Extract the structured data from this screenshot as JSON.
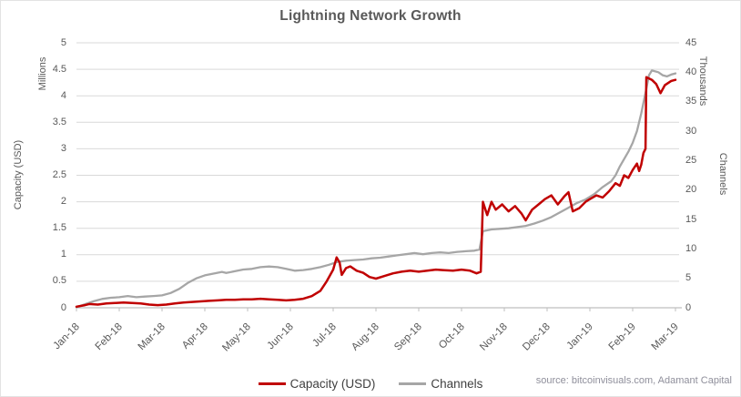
{
  "title": "Lightning Network Growth",
  "source": "source: bitcoinvisuals.com, Adamant Capital",
  "colors": {
    "capacity_line": "#c00000",
    "channels_line": "#a6a6a6",
    "grid": "#d9d9d9",
    "axis": "#bfbfbf",
    "tick_text": "#595959",
    "legend_text": "#3f3f3f",
    "source_text": "#8f8f9b"
  },
  "left_axis": {
    "unit": "Millions",
    "title": "Capacity (USD)"
  },
  "right_axis": {
    "unit": "Thousands",
    "title": "Channels"
  },
  "legend": [
    {
      "label": "Capacity (USD)",
      "color": "#c00000"
    },
    {
      "label": "Channels",
      "color": "#a6a6a6"
    }
  ],
  "chart_data": {
    "type": "line",
    "title": "Lightning Network Growth",
    "grid": true,
    "legend_position": "bottom",
    "x_tick_labels": [
      "Jan-18",
      "Feb-18",
      "Mar-18",
      "Apr-18",
      "May-18",
      "Jun-18",
      "Jul-18",
      "Aug-18",
      "Sep-18",
      "Oct-18",
      "Nov-18",
      "Dec-18",
      "Jan-19",
      "Feb-19",
      "Mar-19"
    ],
    "x_unit": "months after Jan-18 tick (0 = Jan-18, 14 = Mar-19)",
    "left_axis": {
      "label": "Capacity (USD)",
      "unit": "Millions",
      "ticks": [
        "5",
        "4.5",
        "4",
        "3.5",
        "3",
        "2.5",
        "2",
        "1.5",
        "1",
        "0.5",
        "0"
      ],
      "ylim": [
        0,
        5
      ]
    },
    "right_axis": {
      "label": "Channels",
      "unit": "Thousands",
      "ticks": [
        "45",
        "40",
        "35",
        "30",
        "25",
        "20",
        "15",
        "10",
        "5",
        "0"
      ],
      "ylim": [
        0,
        45
      ]
    },
    "series": [
      {
        "name": "Capacity (USD)",
        "axis": "left",
        "units": "millions USD",
        "color": "#c00000",
        "points": [
          [
            0.0,
            0.02
          ],
          [
            0.2,
            0.05
          ],
          [
            0.3,
            0.07
          ],
          [
            0.5,
            0.06
          ],
          [
            0.7,
            0.08
          ],
          [
            0.9,
            0.09
          ],
          [
            1.1,
            0.1
          ],
          [
            1.3,
            0.09
          ],
          [
            1.5,
            0.08
          ],
          [
            1.7,
            0.06
          ],
          [
            1.9,
            0.05
          ],
          [
            2.1,
            0.06
          ],
          [
            2.3,
            0.08
          ],
          [
            2.5,
            0.1
          ],
          [
            2.7,
            0.11
          ],
          [
            2.9,
            0.12
          ],
          [
            3.1,
            0.13
          ],
          [
            3.3,
            0.14
          ],
          [
            3.5,
            0.15
          ],
          [
            3.7,
            0.15
          ],
          [
            3.9,
            0.16
          ],
          [
            4.1,
            0.16
          ],
          [
            4.3,
            0.17
          ],
          [
            4.5,
            0.16
          ],
          [
            4.7,
            0.15
          ],
          [
            4.9,
            0.14
          ],
          [
            5.1,
            0.15
          ],
          [
            5.3,
            0.17
          ],
          [
            5.5,
            0.22
          ],
          [
            5.7,
            0.32
          ],
          [
            5.85,
            0.5
          ],
          [
            6.0,
            0.72
          ],
          [
            6.08,
            0.95
          ],
          [
            6.15,
            0.85
          ],
          [
            6.2,
            0.62
          ],
          [
            6.3,
            0.75
          ],
          [
            6.4,
            0.78
          ],
          [
            6.55,
            0.7
          ],
          [
            6.7,
            0.66
          ],
          [
            6.85,
            0.58
          ],
          [
            7.0,
            0.55
          ],
          [
            7.2,
            0.6
          ],
          [
            7.4,
            0.65
          ],
          [
            7.6,
            0.68
          ],
          [
            7.8,
            0.7
          ],
          [
            8.0,
            0.68
          ],
          [
            8.2,
            0.7
          ],
          [
            8.4,
            0.72
          ],
          [
            8.6,
            0.71
          ],
          [
            8.8,
            0.7
          ],
          [
            9.0,
            0.72
          ],
          [
            9.2,
            0.7
          ],
          [
            9.35,
            0.65
          ],
          [
            9.45,
            0.68
          ],
          [
            9.5,
            2.0
          ],
          [
            9.6,
            1.75
          ],
          [
            9.7,
            2.0
          ],
          [
            9.8,
            1.85
          ],
          [
            9.95,
            1.95
          ],
          [
            10.1,
            1.82
          ],
          [
            10.25,
            1.92
          ],
          [
            10.4,
            1.78
          ],
          [
            10.5,
            1.65
          ],
          [
            10.65,
            1.85
          ],
          [
            10.8,
            1.95
          ],
          [
            10.95,
            2.05
          ],
          [
            11.1,
            2.12
          ],
          [
            11.25,
            1.95
          ],
          [
            11.4,
            2.1
          ],
          [
            11.5,
            2.18
          ],
          [
            11.6,
            1.82
          ],
          [
            11.75,
            1.88
          ],
          [
            11.9,
            2.0
          ],
          [
            12.0,
            2.05
          ],
          [
            12.15,
            2.12
          ],
          [
            12.3,
            2.08
          ],
          [
            12.45,
            2.2
          ],
          [
            12.6,
            2.35
          ],
          [
            12.7,
            2.3
          ],
          [
            12.8,
            2.5
          ],
          [
            12.9,
            2.45
          ],
          [
            13.0,
            2.6
          ],
          [
            13.1,
            2.72
          ],
          [
            13.15,
            2.58
          ],
          [
            13.2,
            2.7
          ],
          [
            13.25,
            2.92
          ],
          [
            13.3,
            3.0
          ],
          [
            13.32,
            4.35
          ],
          [
            13.45,
            4.3
          ],
          [
            13.55,
            4.22
          ],
          [
            13.65,
            4.05
          ],
          [
            13.75,
            4.2
          ],
          [
            13.9,
            4.28
          ],
          [
            14.0,
            4.3
          ]
        ]
      },
      {
        "name": "Channels",
        "axis": "right",
        "units": "thousands of channels",
        "color": "#a6a6a6",
        "points": [
          [
            0.0,
            0.1
          ],
          [
            0.2,
            0.6
          ],
          [
            0.4,
            1.1
          ],
          [
            0.6,
            1.5
          ],
          [
            0.8,
            1.7
          ],
          [
            1.0,
            1.8
          ],
          [
            1.2,
            2.0
          ],
          [
            1.4,
            1.8
          ],
          [
            1.6,
            1.9
          ],
          [
            1.8,
            2.0
          ],
          [
            2.0,
            2.1
          ],
          [
            2.2,
            2.5
          ],
          [
            2.4,
            3.2
          ],
          [
            2.6,
            4.2
          ],
          [
            2.8,
            5.0
          ],
          [
            3.0,
            5.5
          ],
          [
            3.2,
            5.8
          ],
          [
            3.4,
            6.1
          ],
          [
            3.5,
            5.9
          ],
          [
            3.7,
            6.2
          ],
          [
            3.9,
            6.5
          ],
          [
            4.1,
            6.6
          ],
          [
            4.3,
            6.9
          ],
          [
            4.5,
            7.0
          ],
          [
            4.7,
            6.9
          ],
          [
            4.9,
            6.6
          ],
          [
            5.1,
            6.3
          ],
          [
            5.3,
            6.4
          ],
          [
            5.5,
            6.6
          ],
          [
            5.7,
            6.9
          ],
          [
            5.9,
            7.3
          ],
          [
            6.1,
            7.8
          ],
          [
            6.3,
            8.0
          ],
          [
            6.5,
            8.1
          ],
          [
            6.7,
            8.2
          ],
          [
            6.9,
            8.4
          ],
          [
            7.1,
            8.5
          ],
          [
            7.3,
            8.7
          ],
          [
            7.5,
            8.9
          ],
          [
            7.7,
            9.1
          ],
          [
            7.9,
            9.3
          ],
          [
            8.1,
            9.1
          ],
          [
            8.3,
            9.3
          ],
          [
            8.5,
            9.4
          ],
          [
            8.7,
            9.3
          ],
          [
            8.9,
            9.5
          ],
          [
            9.1,
            9.6
          ],
          [
            9.3,
            9.7
          ],
          [
            9.42,
            9.9
          ],
          [
            9.5,
            13.0
          ],
          [
            9.7,
            13.3
          ],
          [
            9.9,
            13.4
          ],
          [
            10.1,
            13.5
          ],
          [
            10.3,
            13.7
          ],
          [
            10.5,
            13.9
          ],
          [
            10.7,
            14.3
          ],
          [
            10.9,
            14.8
          ],
          [
            11.1,
            15.4
          ],
          [
            11.3,
            16.2
          ],
          [
            11.5,
            17.0
          ],
          [
            11.7,
            17.8
          ],
          [
            11.9,
            18.4
          ],
          [
            12.1,
            19.3
          ],
          [
            12.3,
            20.5
          ],
          [
            12.5,
            21.5
          ],
          [
            12.6,
            22.5
          ],
          [
            12.7,
            24.0
          ],
          [
            12.9,
            26.5
          ],
          [
            13.0,
            28.0
          ],
          [
            13.1,
            30.0
          ],
          [
            13.2,
            33.0
          ],
          [
            13.3,
            36.5
          ],
          [
            13.38,
            39.5
          ],
          [
            13.45,
            40.3
          ],
          [
            13.6,
            40.0
          ],
          [
            13.7,
            39.5
          ],
          [
            13.8,
            39.3
          ],
          [
            13.9,
            39.6
          ],
          [
            14.0,
            39.8
          ]
        ]
      }
    ]
  }
}
